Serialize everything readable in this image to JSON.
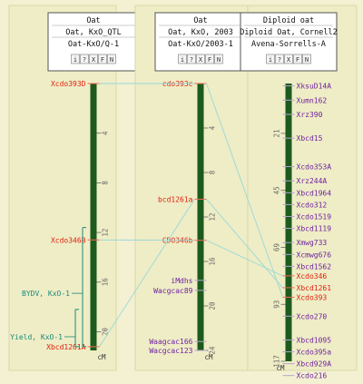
{
  "maps": [
    {
      "id": "left",
      "header": [
        "Oat",
        "Oat, KxO_QTL",
        "Oat-KxO/Q-1"
      ],
      "buttons": [
        "i",
        "?",
        "X",
        "F",
        "N"
      ],
      "unit": "cM",
      "range": [
        0,
        21.5
      ],
      "ticks": [
        4,
        8,
        12,
        16,
        20
      ],
      "markers": [
        {
          "label": "Xcdo393D",
          "pos": 0
        },
        {
          "label": "Xcdo346B",
          "pos": 12.6
        },
        {
          "label": "Xbcd1261A",
          "pos": 21.2
        }
      ],
      "qtls": [
        {
          "label": "BYDV, KxO-1",
          "from": 11.6,
          "to": 21.2
        },
        {
          "label": "Yield, KxO-1",
          "from": 18.2,
          "to": 21.2
        }
      ]
    },
    {
      "id": "middle",
      "header": [
        "Oat",
        "Oat, KxO, 2003",
        "Oat-KxO/2003-1"
      ],
      "buttons": [
        "i",
        "?",
        "X",
        "F",
        "N"
      ],
      "unit": "cM",
      "range": [
        0,
        24
      ],
      "ticks": [
        4,
        8,
        12,
        16,
        20,
        24
      ],
      "markers": [
        {
          "label": "cdo393c",
          "pos": 0
        },
        {
          "label": "bcd1261a",
          "pos": 10.4
        },
        {
          "label": "CDO346b",
          "pos": 14.1
        },
        {
          "label": "iMdhs",
          "pos": 17.7
        },
        {
          "label": "Wacgcac89",
          "pos": 18.6
        },
        {
          "label": "Waagcac166",
          "pos": 23.2
        },
        {
          "label": "Wacgcac123",
          "pos": 24
        }
      ]
    },
    {
      "id": "right",
      "header": [
        "Diploid oat",
        "Diploid Oat, Cornell2",
        "Avena-Sorrells-A"
      ],
      "buttons": [
        "i",
        "?",
        "X",
        "F",
        "N"
      ],
      "unit": "cM",
      "range": [
        0,
        117
      ],
      "ticks": [
        21,
        45,
        69,
        93,
        117
      ],
      "markers": [
        {
          "label": "XksuD14A",
          "pos": 1
        },
        {
          "label": "Xumn162",
          "pos": 7
        },
        {
          "label": "Xrz390",
          "pos": 13
        },
        {
          "label": "Xbcd15",
          "pos": 23
        },
        {
          "label": "Xcdo353A",
          "pos": 35
        },
        {
          "label": "Xrz244A",
          "pos": 41
        },
        {
          "label": "Xbcd1964",
          "pos": 46
        },
        {
          "label": "Xcdo312",
          "pos": 51
        },
        {
          "label": "Xcdo1519",
          "pos": 56
        },
        {
          "label": "Xbcd1119",
          "pos": 61
        },
        {
          "label": "Xmwg733",
          "pos": 67
        },
        {
          "label": "Xcmwg676",
          "pos": 72
        },
        {
          "label": "Xbcd1562",
          "pos": 77
        },
        {
          "label": "Xcdo346",
          "pos": 81
        },
        {
          "label": "Xbcd1261",
          "pos": 86
        },
        {
          "label": "Xcdo393",
          "pos": 90
        },
        {
          "label": "Xcdo270",
          "pos": 98
        },
        {
          "label": "Xbcd1095",
          "pos": 108
        },
        {
          "label": "Xcdo395a",
          "pos": 113
        },
        {
          "label": "Xbcd929A",
          "pos": 118
        },
        {
          "label": "Xcdo216",
          "pos": 123
        }
      ]
    }
  ],
  "links": [
    {
      "from": "Xcdo393D",
      "to": "cdo393c"
    },
    {
      "from": "Xcdo346B",
      "to": "CDO346b"
    },
    {
      "from": "Xbcd1261A",
      "to": "bcd1261a"
    },
    {
      "from": "cdo393c",
      "to": "Xcdo393"
    },
    {
      "from": "bcd1261a",
      "to": "Xbcd1261"
    },
    {
      "from": "CDO346b",
      "to": "Xcdo346"
    }
  ],
  "colors": {
    "background": "#f3f1d2",
    "panel": "#eeedc6",
    "chromosome": "#1d5a1d",
    "tick": "#666666",
    "marker_red": "#e02010",
    "marker_purple": "#7020a0",
    "qtl": "#1a8a7a",
    "link": "#9ad8d8"
  }
}
